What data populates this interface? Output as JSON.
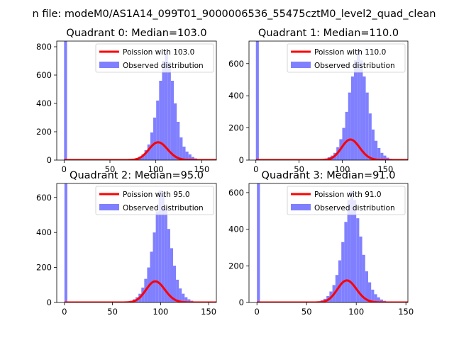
{
  "figure": {
    "suptitle": "n file: modeM0/AS1A14_099T01_9000006536_55475cztM0_level2_quad_clean"
  },
  "chart_data": [
    {
      "type": "bar",
      "title": "Quadrant 0: Median=103.0",
      "xlabel": "",
      "ylabel": "",
      "xlim": [
        -8,
        166
      ],
      "ylim": [
        0,
        840
      ],
      "xticks": [
        0,
        50,
        100,
        150
      ],
      "yticks": [
        0,
        200,
        400,
        600,
        800
      ],
      "legend": {
        "placement": "top-right",
        "entries": [
          "Poission with 103.0",
          "Observed distribution"
        ]
      },
      "poisson_mean": 103.0,
      "series": [
        {
          "name": "Observed distribution",
          "kind": "histogram",
          "color": "#8080ff",
          "zero_bin": {
            "x_start": 0,
            "x_end": 3.2,
            "value": 840
          },
          "bin_width": 3.2,
          "x_start": 62,
          "values": [
            2,
            0,
            3,
            5,
            8,
            14,
            24,
            40,
            70,
            110,
            195,
            300,
            420,
            560,
            700,
            760,
            690,
            560,
            400,
            270,
            160,
            95,
            60,
            40,
            22,
            12,
            6,
            3,
            1
          ]
        },
        {
          "name": "Poission with 103.0",
          "kind": "line",
          "color": "#ff0000",
          "mean": 103.0,
          "scale": 3200
        }
      ]
    },
    {
      "type": "bar",
      "title": "Quadrant 1: Median=110.0",
      "xlabel": "",
      "ylabel": "",
      "xlim": [
        -8,
        176
      ],
      "ylim": [
        0,
        740
      ],
      "xticks": [
        0,
        50,
        100,
        150
      ],
      "yticks": [
        0,
        200,
        400,
        600
      ],
      "legend": {
        "placement": "top-right",
        "entries": [
          "Poission with 110.0",
          "Observed distribution"
        ]
      },
      "poisson_mean": 110.0,
      "series": [
        {
          "name": "Observed distribution",
          "kind": "histogram",
          "color": "#8080ff",
          "zero_bin": {
            "x_start": 0,
            "x_end": 3.4,
            "value": 740
          },
          "bin_width": 3.4,
          "x_start": 66,
          "values": [
            2,
            0,
            4,
            6,
            10,
            18,
            28,
            45,
            80,
            130,
            200,
            300,
            420,
            520,
            620,
            680,
            620,
            520,
            420,
            290,
            190,
            120,
            75,
            45,
            28,
            15,
            8,
            4,
            2
          ]
        },
        {
          "name": "Poission with 110.0",
          "kind": "line",
          "color": "#ff0000",
          "mean": 110.0,
          "scale": 3360
        }
      ]
    },
    {
      "type": "bar",
      "title": "Quadrant 2: Median=95.0",
      "xlabel": "",
      "ylabel": "",
      "xlim": [
        -8,
        158
      ],
      "ylim": [
        0,
        680
      ],
      "xticks": [
        0,
        50,
        100,
        150
      ],
      "yticks": [
        0,
        200,
        400,
        600
      ],
      "legend": {
        "placement": "top-right",
        "entries": [
          "Poission with 95.0",
          "Observed distribution"
        ]
      },
      "poisson_mean": 95.0,
      "series": [
        {
          "name": "Observed distribution",
          "kind": "histogram",
          "color": "#8080ff",
          "zero_bin": {
            "x_start": 0,
            "x_end": 3.0,
            "value": 680
          },
          "bin_width": 3.0,
          "x_start": 56,
          "values": [
            2,
            1,
            3,
            6,
            10,
            18,
            30,
            50,
            85,
            135,
            200,
            290,
            400,
            520,
            640,
            620,
            540,
            420,
            310,
            210,
            130,
            80,
            50,
            30,
            18,
            10,
            5,
            3,
            1
          ]
        },
        {
          "name": "Poission with 95.0",
          "kind": "line",
          "color": "#ff0000",
          "mean": 95.0,
          "scale": 2950
        }
      ]
    },
    {
      "type": "bar",
      "title": "Quadrant 3: Median=91.0",
      "xlabel": "",
      "ylabel": "",
      "xlim": [
        -8,
        152
      ],
      "ylim": [
        0,
        650
      ],
      "xticks": [
        0,
        50,
        100,
        150
      ],
      "yticks": [
        0,
        200,
        400,
        600
      ],
      "legend": {
        "placement": "top-right",
        "entries": [
          "Poission with 91.0",
          "Observed distribution"
        ]
      },
      "poisson_mean": 91.0,
      "series": [
        {
          "name": "Observed distribution",
          "kind": "histogram",
          "color": "#8080ff",
          "zero_bin": {
            "x_start": 0,
            "x_end": 3.0,
            "value": 650
          },
          "bin_width": 3.0,
          "x_start": 52,
          "values": [
            2,
            0,
            4,
            6,
            12,
            20,
            35,
            60,
            95,
            150,
            230,
            330,
            440,
            560,
            610,
            560,
            460,
            360,
            260,
            170,
            110,
            70,
            45,
            28,
            16,
            9,
            5,
            2,
            1
          ]
        },
        {
          "name": "Poission with 91.0",
          "kind": "line",
          "color": "#ff0000",
          "mean": 91.0,
          "scale": 2880
        }
      ]
    }
  ]
}
